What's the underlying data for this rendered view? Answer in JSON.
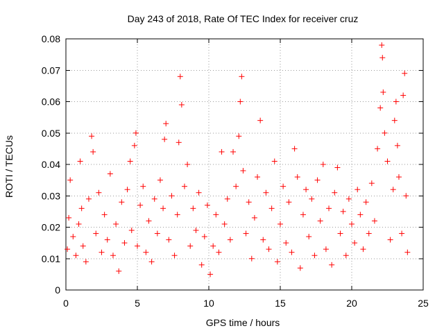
{
  "chart_data": {
    "type": "scatter",
    "title": "Day 243 of 2018, Rate Of TEC Index for receiver cruz",
    "xlabel": "GPS time / hours",
    "ylabel": "ROTI / TECUs",
    "xlim": [
      0,
      25
    ],
    "ylim": [
      0,
      0.08
    ],
    "x_ticks": [
      0,
      5,
      10,
      15,
      20,
      25
    ],
    "x_tick_labels": [
      "0",
      "5",
      "10",
      "15",
      "20",
      "25"
    ],
    "y_ticks": [
      0,
      0.01,
      0.02,
      0.03,
      0.04,
      0.05,
      0.06,
      0.07,
      0.08
    ],
    "y_tick_labels": [
      "0",
      "0.01",
      "0.02",
      "0.03",
      "0.04",
      "0.05",
      "0.06",
      "0.07",
      "0.08"
    ],
    "grid": true,
    "marker": "+",
    "marker_color": "#ff0000",
    "series": [
      {
        "name": "ROTI",
        "points": [
          [
            0.1,
            0.013
          ],
          [
            0.2,
            0.023
          ],
          [
            0.3,
            0.035
          ],
          [
            0.5,
            0.017
          ],
          [
            0.7,
            0.011
          ],
          [
            0.9,
            0.021
          ],
          [
            1.0,
            0.041
          ],
          [
            1.1,
            0.026
          ],
          [
            1.2,
            0.014
          ],
          [
            1.4,
            0.009
          ],
          [
            1.6,
            0.029
          ],
          [
            1.8,
            0.049
          ],
          [
            1.9,
            0.044
          ],
          [
            2.1,
            0.018
          ],
          [
            2.3,
            0.031
          ],
          [
            2.5,
            0.012
          ],
          [
            2.7,
            0.024
          ],
          [
            2.9,
            0.016
          ],
          [
            3.1,
            0.037
          ],
          [
            3.3,
            0.011
          ],
          [
            3.5,
            0.021
          ],
          [
            3.7,
            0.006
          ],
          [
            3.9,
            0.028
          ],
          [
            4.1,
            0.015
          ],
          [
            4.3,
            0.032
          ],
          [
            4.5,
            0.041
          ],
          [
            4.6,
            0.019
          ],
          [
            4.8,
            0.046
          ],
          [
            4.9,
            0.05
          ],
          [
            5.0,
            0.014
          ],
          [
            5.2,
            0.027
          ],
          [
            5.4,
            0.033
          ],
          [
            5.6,
            0.012
          ],
          [
            5.8,
            0.022
          ],
          [
            6.0,
            0.009
          ],
          [
            6.2,
            0.029
          ],
          [
            6.4,
            0.018
          ],
          [
            6.6,
            0.035
          ],
          [
            6.8,
            0.026
          ],
          [
            6.9,
            0.048
          ],
          [
            7.0,
            0.053
          ],
          [
            7.2,
            0.016
          ],
          [
            7.4,
            0.03
          ],
          [
            7.6,
            0.011
          ],
          [
            7.8,
            0.024
          ],
          [
            7.9,
            0.047
          ],
          [
            8.0,
            0.068
          ],
          [
            8.1,
            0.059
          ],
          [
            8.3,
            0.033
          ],
          [
            8.5,
            0.04
          ],
          [
            8.7,
            0.014
          ],
          [
            8.9,
            0.026
          ],
          [
            9.1,
            0.019
          ],
          [
            9.3,
            0.031
          ],
          [
            9.5,
            0.008
          ],
          [
            9.7,
            0.017
          ],
          [
            9.9,
            0.027
          ],
          [
            10.1,
            0.005
          ],
          [
            10.3,
            0.014
          ],
          [
            10.5,
            0.024
          ],
          [
            10.7,
            0.012
          ],
          [
            10.9,
            0.044
          ],
          [
            11.1,
            0.021
          ],
          [
            11.3,
            0.029
          ],
          [
            11.5,
            0.016
          ],
          [
            11.7,
            0.044
          ],
          [
            11.9,
            0.033
          ],
          [
            12.1,
            0.049
          ],
          [
            12.2,
            0.06
          ],
          [
            12.3,
            0.068
          ],
          [
            12.4,
            0.038
          ],
          [
            12.6,
            0.018
          ],
          [
            12.8,
            0.028
          ],
          [
            13.0,
            0.01
          ],
          [
            13.2,
            0.023
          ],
          [
            13.4,
            0.036
          ],
          [
            13.6,
            0.054
          ],
          [
            13.8,
            0.016
          ],
          [
            14.0,
            0.031
          ],
          [
            14.2,
            0.013
          ],
          [
            14.4,
            0.026
          ],
          [
            14.6,
            0.041
          ],
          [
            14.8,
            0.009
          ],
          [
            15.0,
            0.021
          ],
          [
            15.2,
            0.033
          ],
          [
            15.4,
            0.015
          ],
          [
            15.6,
            0.028
          ],
          [
            15.8,
            0.012
          ],
          [
            16.0,
            0.045
          ],
          [
            16.2,
            0.036
          ],
          [
            16.4,
            0.007
          ],
          [
            16.6,
            0.024
          ],
          [
            16.8,
            0.032
          ],
          [
            17.0,
            0.017
          ],
          [
            17.2,
            0.029
          ],
          [
            17.4,
            0.011
          ],
          [
            17.6,
            0.035
          ],
          [
            17.8,
            0.022
          ],
          [
            18.0,
            0.04
          ],
          [
            18.2,
            0.013
          ],
          [
            18.4,
            0.026
          ],
          [
            18.6,
            0.008
          ],
          [
            18.8,
            0.031
          ],
          [
            19.0,
            0.039
          ],
          [
            19.2,
            0.018
          ],
          [
            19.4,
            0.025
          ],
          [
            19.6,
            0.011
          ],
          [
            19.8,
            0.029
          ],
          [
            20.0,
            0.021
          ],
          [
            20.2,
            0.015
          ],
          [
            20.4,
            0.032
          ],
          [
            20.6,
            0.024
          ],
          [
            20.8,
            0.013
          ],
          [
            21.0,
            0.028
          ],
          [
            21.2,
            0.018
          ],
          [
            21.4,
            0.034
          ],
          [
            21.6,
            0.022
          ],
          [
            21.8,
            0.045
          ],
          [
            22.0,
            0.058
          ],
          [
            22.1,
            0.078
          ],
          [
            22.15,
            0.074
          ],
          [
            22.2,
            0.063
          ],
          [
            22.3,
            0.05
          ],
          [
            22.5,
            0.041
          ],
          [
            22.7,
            0.016
          ],
          [
            22.9,
            0.032
          ],
          [
            23.0,
            0.054
          ],
          [
            23.1,
            0.06
          ],
          [
            23.2,
            0.046
          ],
          [
            23.3,
            0.036
          ],
          [
            23.5,
            0.018
          ],
          [
            23.6,
            0.062
          ],
          [
            23.7,
            0.069
          ],
          [
            23.8,
            0.03
          ],
          [
            23.9,
            0.012
          ]
        ]
      }
    ]
  }
}
